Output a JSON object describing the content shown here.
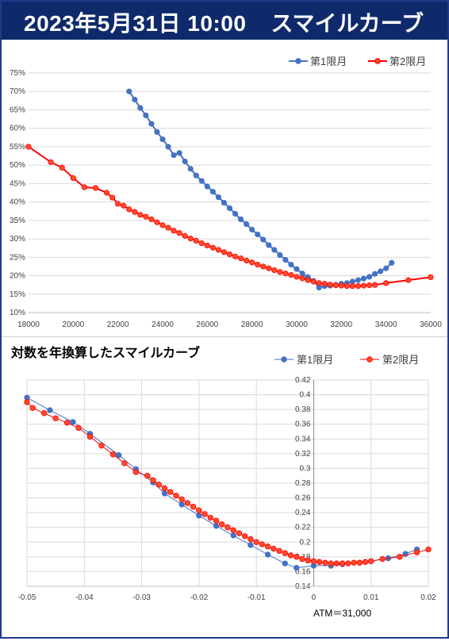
{
  "header": {
    "date_label": "2023年5月31日 10:00",
    "title": "スマイルカーブ"
  },
  "colors": {
    "header_bg": "#0f2a6b",
    "series1": "#4472c4",
    "series2": "#ff0000",
    "series2_fill": "#ff4b2b"
  },
  "chart_data": [
    {
      "type": "line",
      "title": "",
      "xlabel": "",
      "ylabel": "",
      "xlim": [
        18000,
        36000
      ],
      "ylim": [
        0.1,
        0.75
      ],
      "x_ticks": [
        "18000",
        "20000",
        "22000",
        "24000",
        "26000",
        "28000",
        "30000",
        "32000",
        "34000",
        "36000"
      ],
      "y_ticks": [
        "10%",
        "15%",
        "20%",
        "25%",
        "30%",
        "35%",
        "40%",
        "45%",
        "50%",
        "55%",
        "60%",
        "65%",
        "70%",
        "75%"
      ],
      "grid": true,
      "legend": "top-right",
      "series": [
        {
          "name": "第1限月",
          "x": [
            22500,
            22750,
            23000,
            23250,
            23500,
            23750,
            24000,
            24250,
            24500,
            24750,
            25000,
            25250,
            25500,
            25750,
            26000,
            26250,
            26500,
            26750,
            27000,
            27250,
            27500,
            27750,
            28000,
            28250,
            28500,
            28750,
            29000,
            29250,
            29500,
            29750,
            30000,
            30250,
            30500,
            30750,
            31000,
            31250,
            31500,
            31750,
            32000,
            32250,
            32500,
            32750,
            33000,
            33250,
            33500,
            33750,
            34000,
            34250
          ],
          "values": [
            0.7,
            0.678,
            0.655,
            0.635,
            0.612,
            0.59,
            0.57,
            0.55,
            0.527,
            0.533,
            0.51,
            0.49,
            0.472,
            0.457,
            0.442,
            0.428,
            0.413,
            0.398,
            0.383,
            0.368,
            0.353,
            0.34,
            0.325,
            0.312,
            0.298,
            0.283,
            0.27,
            0.256,
            0.243,
            0.23,
            0.218,
            0.206,
            0.196,
            0.186,
            0.168,
            0.172,
            0.173,
            0.175,
            0.178,
            0.18,
            0.184,
            0.188,
            0.192,
            0.197,
            0.205,
            0.212,
            0.22,
            0.235
          ]
        },
        {
          "name": "第2限月",
          "x": [
            18000,
            19000,
            19500,
            20000,
            20500,
            21000,
            21500,
            21750,
            22000,
            22250,
            22500,
            22750,
            23000,
            23250,
            23500,
            23750,
            24000,
            24250,
            24500,
            24750,
            25000,
            25250,
            25500,
            25750,
            26000,
            26250,
            26500,
            26750,
            27000,
            27250,
            27500,
            27750,
            28000,
            28250,
            28500,
            28750,
            29000,
            29250,
            29500,
            29750,
            30000,
            30250,
            30500,
            30750,
            31000,
            31250,
            31500,
            31750,
            32000,
            32250,
            32500,
            32750,
            33000,
            33250,
            33500,
            34000,
            35000,
            36000
          ],
          "values": [
            0.55,
            0.508,
            0.493,
            0.465,
            0.44,
            0.438,
            0.425,
            0.412,
            0.395,
            0.39,
            0.38,
            0.373,
            0.365,
            0.36,
            0.353,
            0.345,
            0.337,
            0.33,
            0.322,
            0.316,
            0.308,
            0.301,
            0.295,
            0.288,
            0.282,
            0.276,
            0.27,
            0.264,
            0.258,
            0.252,
            0.247,
            0.241,
            0.236,
            0.23,
            0.225,
            0.22,
            0.215,
            0.21,
            0.206,
            0.202,
            0.197,
            0.193,
            0.188,
            0.184,
            0.18,
            0.178,
            0.176,
            0.174,
            0.173,
            0.172,
            0.172,
            0.172,
            0.173,
            0.174,
            0.175,
            0.18,
            0.188,
            0.196
          ]
        }
      ]
    },
    {
      "type": "line",
      "title": "対数を年換算したスマイルカーブ",
      "xlabel": "ATM＝31,000",
      "ylabel": "",
      "xlim": [
        -0.05,
        0.02
      ],
      "ylim": [
        0.14,
        0.42
      ],
      "x_ticks": [
        "-0.05",
        "-0.04",
        "-0.03",
        "-0.02",
        "-0.01",
        "0",
        "0.01",
        "0.02"
      ],
      "y_ticks": [
        "0.14",
        "0.16",
        "0.18",
        "0.2",
        "0.22",
        "0.24",
        "0.26",
        "0.28",
        "0.3",
        "0.32",
        "0.34",
        "0.36",
        "0.38",
        "0.4",
        "0.42"
      ],
      "grid": true,
      "legend": "top-right",
      "series": [
        {
          "name": "第1限月",
          "x": [
            -0.05,
            -0.046,
            -0.042,
            -0.039,
            -0.034,
            -0.031,
            -0.028,
            -0.026,
            -0.023,
            -0.02,
            -0.017,
            -0.014,
            -0.011,
            -0.008,
            -0.005,
            -0.003,
            0.0,
            0.003,
            0.005,
            0.008,
            0.01,
            0.013,
            0.016,
            0.018
          ],
          "values": [
            0.396,
            0.379,
            0.363,
            0.347,
            0.318,
            0.299,
            0.281,
            0.266,
            0.251,
            0.236,
            0.222,
            0.209,
            0.196,
            0.183,
            0.171,
            0.165,
            0.168,
            0.168,
            0.17,
            0.172,
            0.174,
            0.178,
            0.184,
            0.19
          ]
        },
        {
          "name": "第2限月",
          "x": [
            -0.05,
            -0.049,
            -0.047,
            -0.045,
            -0.043,
            -0.041,
            -0.039,
            -0.037,
            -0.035,
            -0.033,
            -0.031,
            -0.029,
            -0.028,
            -0.027,
            -0.026,
            -0.025,
            -0.024,
            -0.023,
            -0.022,
            -0.021,
            -0.02,
            -0.019,
            -0.018,
            -0.017,
            -0.016,
            -0.015,
            -0.014,
            -0.013,
            -0.012,
            -0.011,
            -0.01,
            -0.009,
            -0.008,
            -0.007,
            -0.006,
            -0.005,
            -0.004,
            -0.003,
            -0.002,
            -0.001,
            0.0,
            0.001,
            0.002,
            0.003,
            0.004,
            0.005,
            0.006,
            0.007,
            0.008,
            0.009,
            0.01,
            0.012,
            0.015,
            0.018,
            0.02
          ],
          "values": [
            0.39,
            0.382,
            0.375,
            0.368,
            0.362,
            0.355,
            0.343,
            0.331,
            0.319,
            0.307,
            0.295,
            0.29,
            0.284,
            0.278,
            0.273,
            0.268,
            0.263,
            0.258,
            0.253,
            0.248,
            0.243,
            0.238,
            0.233,
            0.229,
            0.224,
            0.22,
            0.216,
            0.212,
            0.208,
            0.204,
            0.2,
            0.197,
            0.194,
            0.191,
            0.188,
            0.185,
            0.182,
            0.18,
            0.177,
            0.175,
            0.174,
            0.173,
            0.172,
            0.171,
            0.171,
            0.171,
            0.171,
            0.172,
            0.172,
            0.173,
            0.174,
            0.177,
            0.18,
            0.186,
            0.19
          ]
        }
      ]
    }
  ]
}
